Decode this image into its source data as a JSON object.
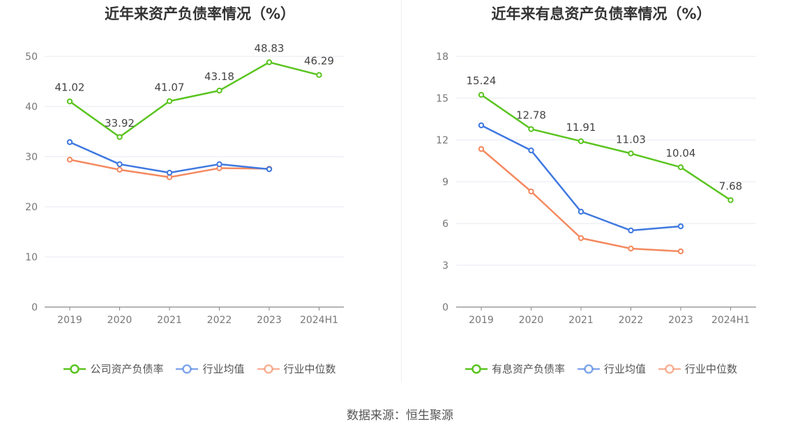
{
  "chart_data": [
    {
      "type": "line",
      "title": "近年来资产负债率情况（%）",
      "categories": [
        "2019",
        "2020",
        "2021",
        "2022",
        "2023",
        "2024H1"
      ],
      "ylim": [
        0,
        50
      ],
      "yticks": [
        0,
        10,
        20,
        30,
        40,
        50
      ],
      "grid": true,
      "legend_position": "bottom",
      "series": [
        {
          "name": "公司资产负债率",
          "color": "#5ac41f",
          "values": [
            41.02,
            33.92,
            41.07,
            43.18,
            48.83,
            46.29
          ],
          "labels": [
            "41.02",
            "33.92",
            "41.07",
            "43.18",
            "48.83",
            "46.29"
          ]
        },
        {
          "name": "行业均值",
          "color": "#3f78e0",
          "values": [
            32.9,
            28.5,
            26.8,
            28.5,
            27.5,
            null
          ]
        },
        {
          "name": "行业中位数",
          "color": "#f4895f",
          "values": [
            29.4,
            27.4,
            25.9,
            27.7,
            27.6,
            null
          ]
        }
      ]
    },
    {
      "type": "line",
      "title": "近年来有息资产负债率情况（%）",
      "categories": [
        "2019",
        "2020",
        "2021",
        "2022",
        "2023",
        "2024H1"
      ],
      "ylim": [
        0,
        18
      ],
      "yticks": [
        0,
        3,
        6,
        9,
        12,
        15,
        18
      ],
      "grid": true,
      "legend_position": "bottom",
      "series": [
        {
          "name": "有息资产负债率",
          "color": "#5ac41f",
          "values": [
            15.24,
            12.78,
            11.91,
            11.03,
            10.04,
            7.68
          ],
          "labels": [
            "15.24",
            "12.78",
            "11.91",
            "11.03",
            "10.04",
            "7.68"
          ]
        },
        {
          "name": "行业均值",
          "color": "#3f78e0",
          "values": [
            13.05,
            11.25,
            6.85,
            5.5,
            5.8,
            null
          ]
        },
        {
          "name": "行业中位数",
          "color": "#f4895f",
          "values": [
            11.35,
            8.3,
            4.95,
            4.2,
            4.0,
            null
          ]
        }
      ]
    }
  ],
  "footer": {
    "source": "数据来源：恒生聚源"
  }
}
